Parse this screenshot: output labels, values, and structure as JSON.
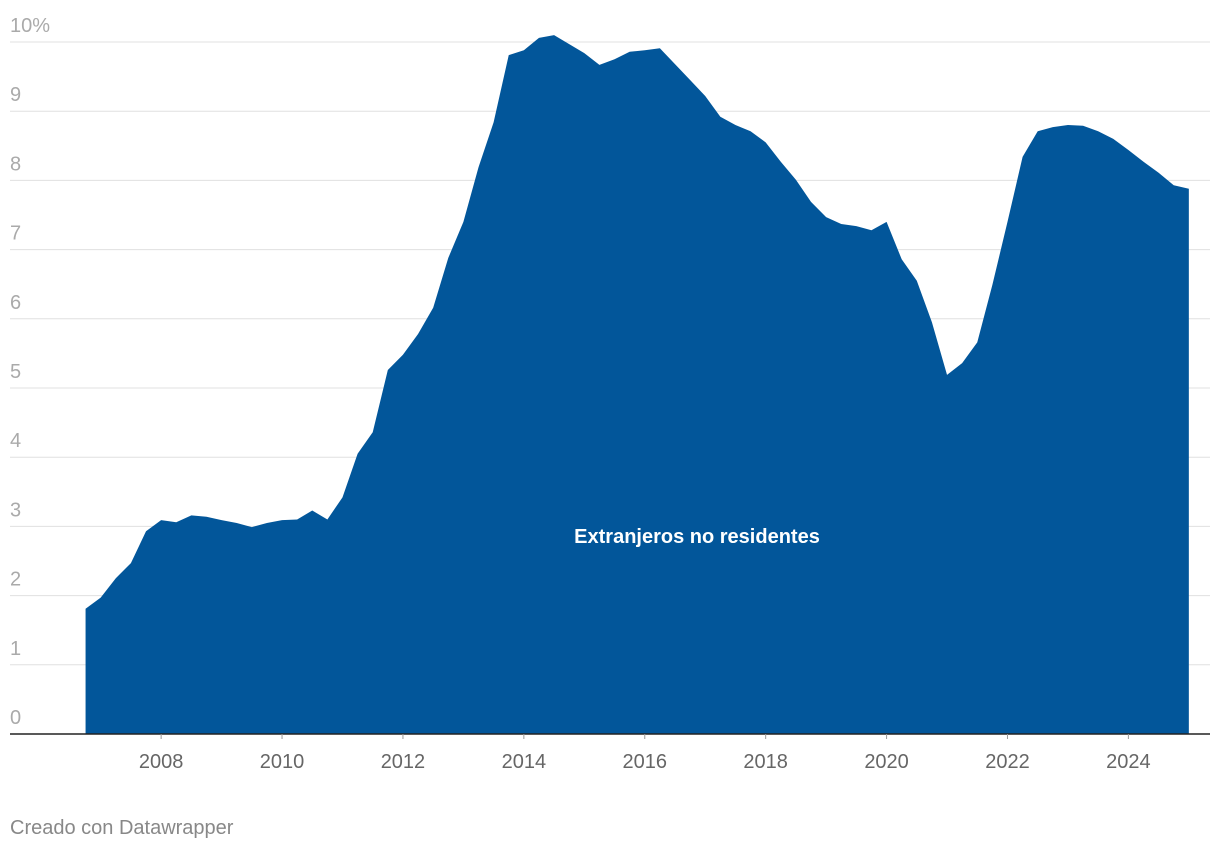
{
  "chart_data": {
    "type": "area",
    "x": [
      2006.75,
      2007,
      2007.25,
      2007.5,
      2007.75,
      2008,
      2008.25,
      2008.5,
      2008.75,
      2009,
      2009.25,
      2009.5,
      2009.75,
      2010,
      2010.25,
      2010.5,
      2010.75,
      2011,
      2011.25,
      2011.5,
      2011.75,
      2012,
      2012.25,
      2012.5,
      2012.75,
      2013,
      2013.25,
      2013.5,
      2013.75,
      2014,
      2014.25,
      2014.5,
      2014.75,
      2015,
      2015.25,
      2015.5,
      2015.75,
      2016,
      2016.25,
      2016.5,
      2016.75,
      2017,
      2017.25,
      2017.5,
      2017.75,
      2018,
      2018.25,
      2018.5,
      2018.75,
      2019,
      2019.25,
      2019.5,
      2019.75,
      2020,
      2020.25,
      2020.5,
      2020.75,
      2021,
      2021.25,
      2021.5,
      2021.75,
      2022,
      2022.25,
      2022.5,
      2022.75,
      2023,
      2023.25,
      2023.5,
      2023.75,
      2024,
      2024.25,
      2024.5,
      2024.75,
      2025
    ],
    "series": [
      {
        "name": "Extranjeros no residentes",
        "color": "#02569a",
        "values": [
          1.81,
          1.97,
          2.25,
          2.47,
          2.93,
          3.09,
          3.06,
          3.16,
          3.14,
          3.09,
          3.05,
          2.99,
          3.05,
          3.09,
          3.1,
          3.23,
          3.1,
          3.42,
          4.05,
          4.36,
          5.26,
          5.48,
          5.78,
          6.16,
          6.88,
          7.4,
          8.19,
          8.84,
          9.81,
          9.88,
          10.06,
          10.1,
          9.97,
          9.84,
          9.67,
          9.75,
          9.86,
          9.88,
          9.91,
          9.68,
          9.45,
          9.22,
          8.92,
          8.8,
          8.71,
          8.55,
          8.27,
          8.01,
          7.69,
          7.47,
          7.37,
          7.34,
          7.28,
          7.4,
          6.86,
          6.55,
          5.95,
          5.19,
          5.36,
          5.66,
          6.49,
          7.4,
          8.34,
          8.71,
          8.77,
          8.8,
          8.79,
          8.71,
          8.6,
          8.44,
          8.27,
          8.11,
          7.93,
          7.88
        ]
      }
    ],
    "xlim": [
      2005.5,
      2025.35
    ],
    "xticks": [
      2008,
      2010,
      2012,
      2014,
      2016,
      2018,
      2020,
      2022,
      2024
    ],
    "ylim": [
      0,
      10
    ],
    "yticks": [
      0,
      1,
      2,
      3,
      4,
      5,
      6,
      7,
      8,
      9,
      {
        "value": 10,
        "label": "10%"
      }
    ],
    "grid": true,
    "footer": "Creado con Datawrapper"
  }
}
